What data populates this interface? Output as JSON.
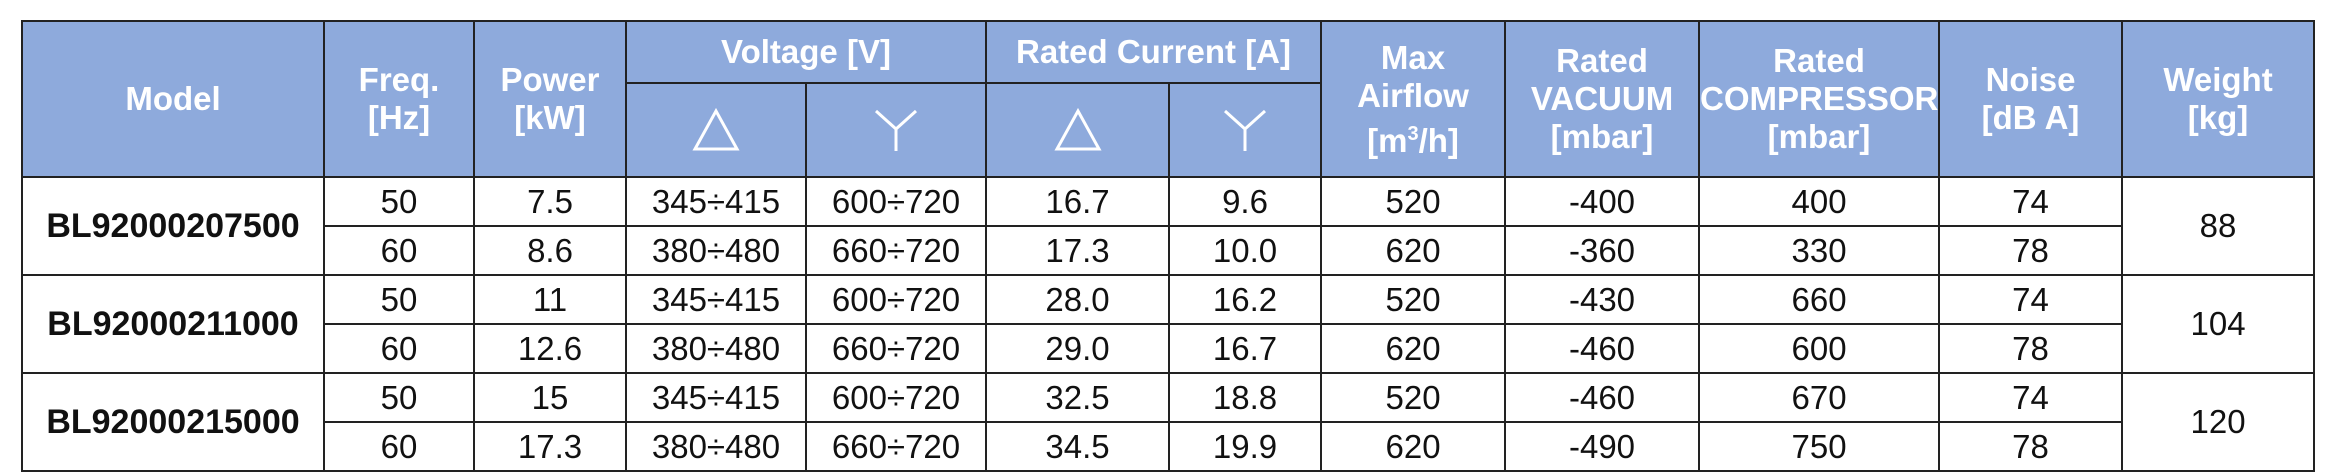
{
  "header": {
    "model": "Model",
    "freq": [
      "Freq.",
      "[Hz]"
    ],
    "power": [
      "Power",
      "[kW]"
    ],
    "voltage": "Voltage [V]",
    "rated_current": "Rated Current [A]",
    "airflow": [
      "Max",
      "Airflow",
      "[m",
      "3",
      "/h]"
    ],
    "vacuum": [
      "Rated",
      "VACUUM",
      "[mbar]"
    ],
    "compressor": [
      "Rated",
      "COMPRESSOR",
      "[mbar]"
    ],
    "noise": [
      "Noise",
      "[dB A]"
    ],
    "weight": [
      "Weight",
      "[kg]"
    ],
    "delta_symbol": "delta-icon",
    "wye_symbol": "wye-icon"
  },
  "models": [
    {
      "model": "BL92000207500",
      "weight": "88",
      "rows": [
        {
          "freq": "50",
          "power": "7.5",
          "v_delta": "345÷415",
          "v_wye": "600÷720",
          "i_delta": "16.7",
          "i_wye": "9.6",
          "airflow": "520",
          "vacuum": "-400",
          "compressor": "400",
          "noise": "74"
        },
        {
          "freq": "60",
          "power": "8.6",
          "v_delta": "380÷480",
          "v_wye": "660÷720",
          "i_delta": "17.3",
          "i_wye": "10.0",
          "airflow": "620",
          "vacuum": "-360",
          "compressor": "330",
          "noise": "78"
        }
      ]
    },
    {
      "model": "BL92000211000",
      "weight": "104",
      "rows": [
        {
          "freq": "50",
          "power": "11",
          "v_delta": "345÷415",
          "v_wye": "600÷720",
          "i_delta": "28.0",
          "i_wye": "16.2",
          "airflow": "520",
          "vacuum": "-430",
          "compressor": "660",
          "noise": "74"
        },
        {
          "freq": "60",
          "power": "12.6",
          "v_delta": "380÷480",
          "v_wye": "660÷720",
          "i_delta": "29.0",
          "i_wye": "16.7",
          "airflow": "620",
          "vacuum": "-460",
          "compressor": "600",
          "noise": "78"
        }
      ]
    },
    {
      "model": "BL92000215000",
      "weight": "120",
      "rows": [
        {
          "freq": "50",
          "power": "15",
          "v_delta": "345÷415",
          "v_wye": "600÷720",
          "i_delta": "32.5",
          "i_wye": "18.8",
          "airflow": "520",
          "vacuum": "-460",
          "compressor": "670",
          "noise": "74"
        },
        {
          "freq": "60",
          "power": "17.3",
          "v_delta": "380÷480",
          "v_wye": "660÷720",
          "i_delta": "34.5",
          "i_wye": "19.9",
          "airflow": "620",
          "vacuum": "-490",
          "compressor": "750",
          "noise": "78"
        }
      ]
    }
  ],
  "colors": {
    "header_bg": "#8EAADC",
    "header_text": "#FFFFFF",
    "border": "#222222"
  }
}
